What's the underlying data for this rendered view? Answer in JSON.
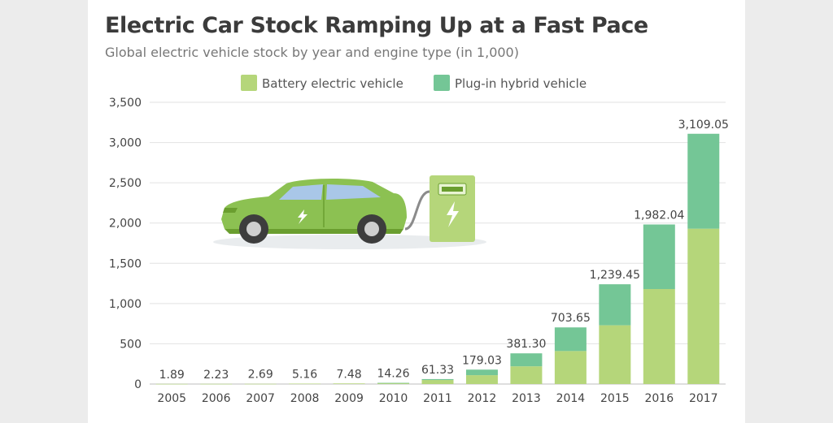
{
  "chart_data": {
    "type": "bar",
    "stacked": true,
    "title": "Electric Car Stock Ramping Up at a Fast Pace",
    "subtitle": "Global electric vehicle stock by year and engine type (in 1,000)",
    "categories": [
      "2005",
      "2006",
      "2007",
      "2008",
      "2009",
      "2010",
      "2011",
      "2012",
      "2013",
      "2014",
      "2015",
      "2016",
      "2017"
    ],
    "series": [
      {
        "name": "Battery electric vehicle",
        "color": "#b5d67a",
        "values": [
          1.89,
          2.23,
          2.69,
          5.16,
          7.48,
          14.0,
          50.0,
          110.0,
          220.0,
          410.0,
          730.0,
          1180.0,
          1930.0
        ]
      },
      {
        "name": "Plug-in hybrid vehicle",
        "color": "#74c696",
        "values": [
          0,
          0,
          0,
          0,
          0,
          0.26,
          11.33,
          69.03,
          161.3,
          293.65,
          509.45,
          802.04,
          1179.05
        ]
      }
    ],
    "totals": [
      1.89,
      2.23,
      2.69,
      5.16,
      7.48,
      14.26,
      61.33,
      179.03,
      381.3,
      703.65,
      1239.45,
      1982.04,
      3109.05
    ],
    "total_labels": [
      "1.89",
      "2.23",
      "2.69",
      "5.16",
      "7.48",
      "14.26",
      "61.33",
      "179.03",
      "381.30",
      "703.65",
      "1,239.45",
      "1,982.04",
      "3,109.05"
    ],
    "ylim": [
      0,
      3500
    ],
    "yticks": [
      0,
      500,
      1000,
      1500,
      2000,
      2500,
      3000,
      3500
    ],
    "ytick_labels": [
      "0",
      "500",
      "1,000",
      "1,500",
      "2,000",
      "2,500",
      "3,000",
      "3,500"
    ],
    "legend_position": "top-center",
    "grid": true
  },
  "colors": {
    "bev": "#b5d67a",
    "phev": "#74c696",
    "grid": "#e2e2e2",
    "car_body": "#8cc152",
    "car_dark": "#6a9e2f",
    "window": "#a9c7e8"
  },
  "illustration": {
    "icon": "electric-car-charging-icon"
  }
}
